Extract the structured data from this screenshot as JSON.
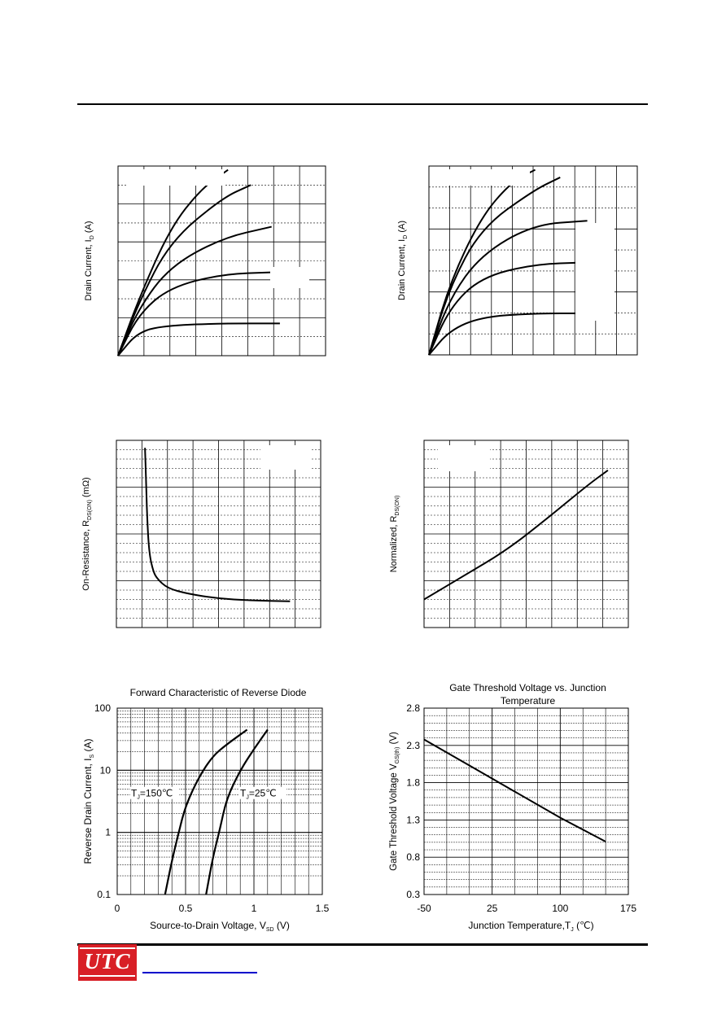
{
  "page": {
    "logo_text": "UTC"
  },
  "charts": {
    "c1": {
      "ylabel": "Drain Current, I",
      "ylabel_sub": "D",
      "ylabel_tail": " (A)"
    },
    "c2": {
      "ylabel": "Drain Current, I",
      "ylabel_sub": "D",
      "ylabel_tail": " (A)"
    },
    "c3": {
      "ylabel": "On-Resistance, R",
      "ylabel_sub": "DS(ON)",
      "ylabel_tail": " (mΩ)"
    },
    "c4": {
      "ylabel": "Normalized, R",
      "ylabel_sub": "DS(ON)",
      "ylabel_tail": ""
    },
    "c5": {
      "title": "Forward Characteristic of Reverse Diode",
      "xlabel": "Source-to-Drain Voltage, V",
      "xlabel_sub": "SD",
      "xlabel_tail": " (V)",
      "ylabel": "Reverse Drain Current, I",
      "ylabel_sub": "S",
      "ylabel_tail": " (A)",
      "xticks": [
        "0",
        "0.5",
        "1",
        "1.5"
      ],
      "yticks": [
        "0.1",
        "1",
        "10",
        "100"
      ],
      "ann1": "T",
      "ann1_sub": "J",
      "ann1_tail": "=150℃",
      "ann2": "T",
      "ann2_sub": "J",
      "ann2_tail": "=25℃"
    },
    "c6": {
      "title1": "Gate Threshold Voltage vs. Junction",
      "title2": "Temperature",
      "xlabel": "Junction Temperature,T",
      "xlabel_sub": "J",
      "xlabel_tail": " (℃)",
      "ylabel": "Gate Threshold Voltage V",
      "ylabel_sub": "GS(th)",
      "ylabel_tail": " (V)",
      "xticks": [
        "-50",
        "25",
        "100",
        "175"
      ],
      "yticks": [
        "0.3",
        "0.8",
        "1.3",
        "1.8",
        "2.3",
        "2.8"
      ]
    }
  },
  "chart_data": [
    {
      "type": "line",
      "series": [
        {
          "values": [
            [
              0,
              0
            ],
            [
              0.1,
              0.13
            ],
            [
              0.25,
              0.16
            ],
            [
              0.5,
              0.17
            ],
            [
              0.78,
              0.17
            ]
          ]
        },
        {
          "values": [
            [
              0,
              0
            ],
            [
              0.1,
              0.22
            ],
            [
              0.25,
              0.36
            ],
            [
              0.5,
              0.43
            ],
            [
              0.75,
              0.44
            ]
          ]
        },
        {
          "values": [
            [
              0,
              0
            ],
            [
              0.1,
              0.25
            ],
            [
              0.25,
              0.47
            ],
            [
              0.5,
              0.62
            ],
            [
              0.74,
              0.68
            ]
          ]
        },
        {
          "values": [
            [
              0,
              0
            ],
            [
              0.1,
              0.28
            ],
            [
              0.25,
              0.6
            ],
            [
              0.5,
              0.83
            ],
            [
              0.64,
              0.9
            ]
          ]
        },
        {
          "values": [
            [
              0,
              0
            ],
            [
              0.1,
              0.3
            ],
            [
              0.25,
              0.67
            ],
            [
              0.4,
              0.88
            ],
            [
              0.53,
              0.98
            ]
          ]
        }
      ]
    },
    {
      "type": "line",
      "series": [
        {
          "values": [
            [
              0,
              0
            ],
            [
              0.1,
              0.13
            ],
            [
              0.25,
              0.2
            ],
            [
              0.5,
              0.22
            ],
            [
              0.76,
              0.22
            ]
          ]
        },
        {
          "values": [
            [
              0,
              0
            ],
            [
              0.1,
              0.25
            ],
            [
              0.25,
              0.41
            ],
            [
              0.5,
              0.48
            ],
            [
              0.76,
              0.49
            ]
          ]
        },
        {
          "values": [
            [
              0,
              0
            ],
            [
              0.1,
              0.3
            ],
            [
              0.25,
              0.53
            ],
            [
              0.5,
              0.69
            ],
            [
              0.76,
              0.71
            ]
          ]
        },
        {
          "values": [
            [
              0,
              0
            ],
            [
              0.1,
              0.36
            ],
            [
              0.25,
              0.67
            ],
            [
              0.5,
              0.87
            ],
            [
              0.63,
              0.94
            ]
          ]
        },
        {
          "values": [
            [
              0,
              0
            ],
            [
              0.1,
              0.38
            ],
            [
              0.25,
              0.73
            ],
            [
              0.4,
              0.92
            ],
            [
              0.51,
              0.98
            ]
          ]
        }
      ]
    },
    {
      "type": "line",
      "series": [
        {
          "values": [
            [
              0.14,
              0.96
            ],
            [
              0.145,
              0.8
            ],
            [
              0.15,
              0.6
            ],
            [
              0.16,
              0.4
            ],
            [
              0.18,
              0.3
            ],
            [
              0.2,
              0.26
            ],
            [
              0.25,
              0.21
            ],
            [
              0.35,
              0.18
            ],
            [
              0.5,
              0.155
            ],
            [
              0.65,
              0.145
            ],
            [
              0.85,
              0.14
            ]
          ]
        }
      ]
    },
    {
      "type": "line",
      "series": [
        {
          "values": [
            [
              0,
              0.15
            ],
            [
              0.2,
              0.28
            ],
            [
              0.4,
              0.41
            ],
            [
              0.6,
              0.58
            ],
            [
              0.8,
              0.76
            ],
            [
              0.9,
              0.84
            ]
          ]
        }
      ]
    },
    {
      "type": "line",
      "title": "Forward Characteristic of Reverse Diode",
      "xlabel": "Source-to-Drain Voltage, VSD (V)",
      "ylabel": "Reverse Drain Current, IS (A)",
      "xlim": [
        0,
        1.5
      ],
      "ylim": [
        0.1,
        100
      ],
      "y_scale": "log",
      "series": [
        {
          "name": "TJ=150℃",
          "x": [
            0.35,
            0.4,
            0.45,
            0.5,
            0.6,
            0.7,
            0.8,
            0.95
          ],
          "y": [
            0.1,
            0.35,
            1,
            2.7,
            8,
            17,
            26,
            45
          ]
        },
        {
          "name": "TJ=25℃",
          "x": [
            0.65,
            0.7,
            0.75,
            0.8,
            0.9,
            1.0,
            1.1
          ],
          "y": [
            0.1,
            0.4,
            1.1,
            3.5,
            10,
            22,
            45
          ]
        }
      ]
    },
    {
      "type": "line",
      "title": "Gate Threshold Voltage vs. Junction Temperature",
      "xlabel": "Junction Temperature,TJ (℃)",
      "ylabel": "Gate Threshold Voltage VGS(th) (V)",
      "xlim": [
        -50,
        175
      ],
      "ylim": [
        0.3,
        2.8
      ],
      "series": [
        {
          "x": [
            -50,
            0,
            50,
            100,
            150
          ],
          "y": [
            2.38,
            2.03,
            1.68,
            1.33,
            1.01
          ]
        }
      ]
    }
  ]
}
